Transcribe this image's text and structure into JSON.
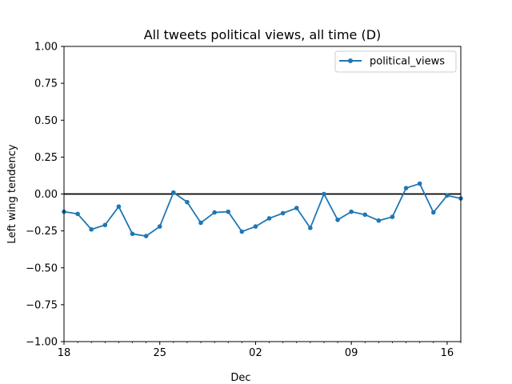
{
  "chart_data": {
    "type": "line",
    "title": "All tweets political views, all time (D)",
    "xlabel": "Dec",
    "ylabel": "Left wing tendency",
    "ylim": [
      -1.0,
      1.0
    ],
    "yticks": [
      -1.0,
      -0.75,
      -0.5,
      -0.25,
      0.0,
      0.25,
      0.5,
      0.75,
      1.0
    ],
    "ytick_labels": [
      "−1.00",
      "−0.75",
      "−0.50",
      "−0.25",
      "0.00",
      "0.25",
      "0.50",
      "0.75",
      "1.00"
    ],
    "xlim": [
      "2017-11-18",
      "2017-12-17"
    ],
    "xticks": [
      {
        "date": "2017-11-18",
        "label": "18"
      },
      {
        "date": "2017-11-25",
        "label": "25"
      },
      {
        "date": "2017-12-02",
        "label": "02"
      },
      {
        "date": "2017-12-09",
        "label": "09"
      },
      {
        "date": "2017-12-16",
        "label": "16"
      }
    ],
    "minor_xticks_daily": true,
    "reference_line": {
      "y": 0.0,
      "color": "#000000"
    },
    "grid": false,
    "legend_position": "upper right",
    "series": [
      {
        "name": "political_views",
        "color": "#1f77b4",
        "marker": "circle",
        "x": [
          "2017-11-18",
          "2017-11-19",
          "2017-11-20",
          "2017-11-21",
          "2017-11-22",
          "2017-11-23",
          "2017-11-24",
          "2017-11-25",
          "2017-11-26",
          "2017-11-27",
          "2017-11-28",
          "2017-11-29",
          "2017-11-30",
          "2017-12-01",
          "2017-12-02",
          "2017-12-03",
          "2017-12-04",
          "2017-12-05",
          "2017-12-06",
          "2017-12-07",
          "2017-12-08",
          "2017-12-09",
          "2017-12-10",
          "2017-12-11",
          "2017-12-12",
          "2017-12-13",
          "2017-12-14",
          "2017-12-15",
          "2017-12-16",
          "2017-12-17"
        ],
        "values": [
          -0.12,
          -0.135,
          -0.24,
          -0.21,
          -0.085,
          -0.27,
          -0.285,
          -0.22,
          0.01,
          -0.055,
          -0.195,
          -0.125,
          -0.12,
          -0.255,
          -0.22,
          -0.165,
          -0.13,
          -0.095,
          -0.23,
          0.0,
          -0.175,
          -0.12,
          -0.14,
          -0.18,
          -0.155,
          0.04,
          0.07,
          -0.125,
          -0.01,
          -0.03
        ]
      }
    ]
  }
}
